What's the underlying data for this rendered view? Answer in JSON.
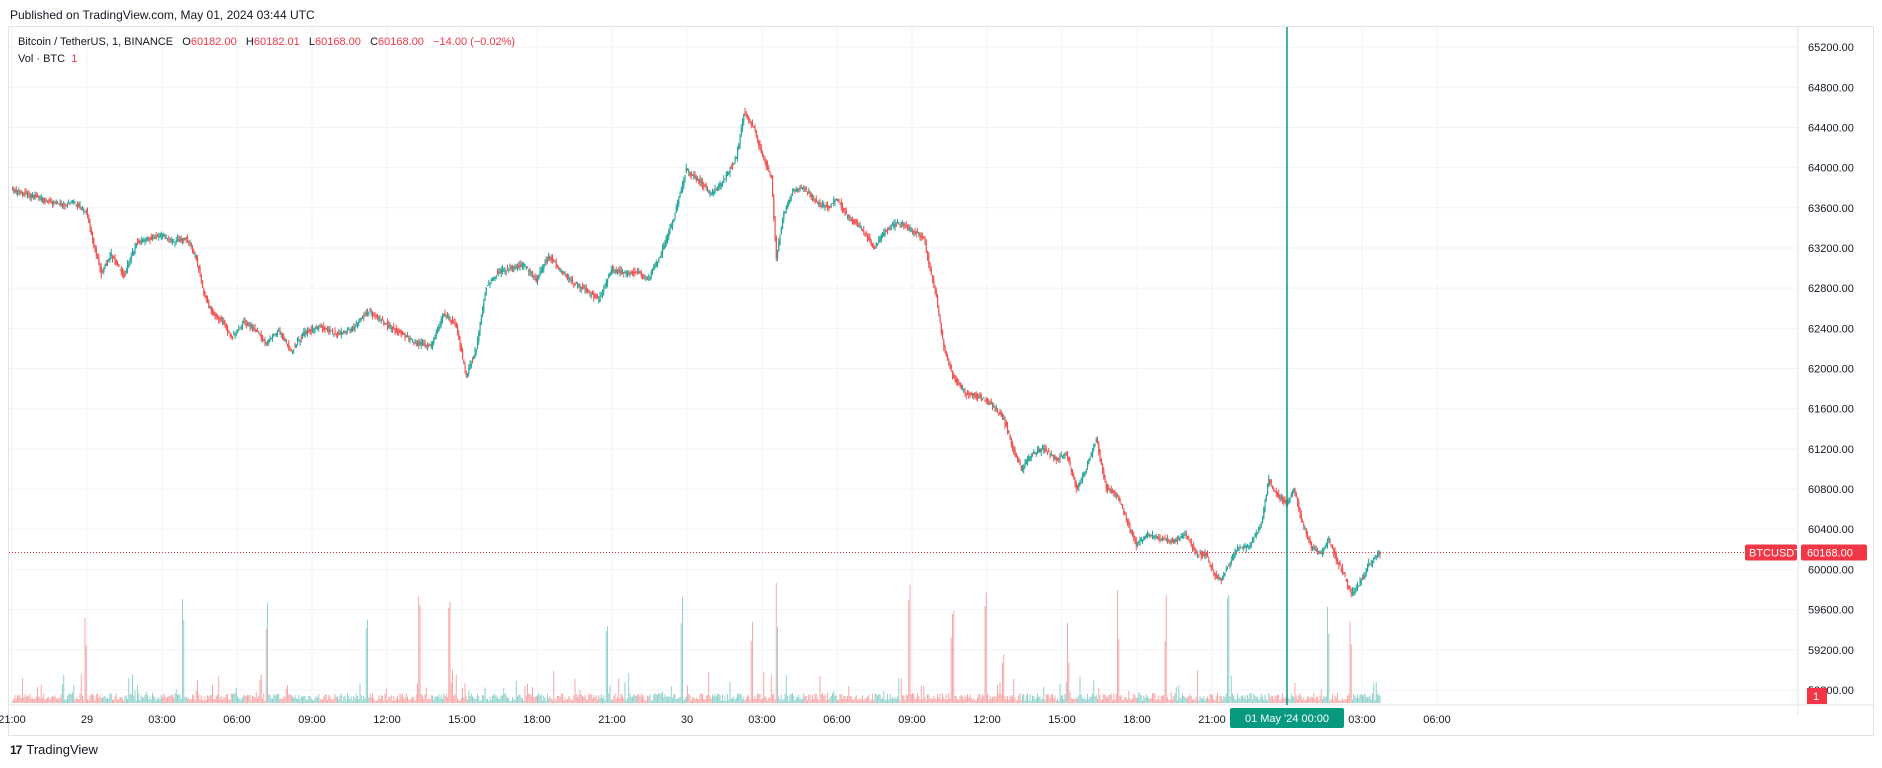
{
  "header": {
    "published": "Published on TradingView.com, May 01, 2024 03:44 UTC"
  },
  "legend": {
    "symbol": "Bitcoin / TetherUS, 1, BINANCE",
    "o_label": "O",
    "o_value": "60182.00",
    "h_label": "H",
    "h_value": "60182.01",
    "l_label": "L",
    "l_value": "60168.00",
    "c_label": "C",
    "c_value": "60168.00",
    "change": "−14.00 (−0.02%)",
    "vol_label": "Vol · BTC",
    "vol_value": "1"
  },
  "footer": {
    "brand": "TradingView",
    "logo": "17"
  },
  "colors": {
    "up": "#26a69a",
    "down": "#ef5350",
    "accent_green": "#089981",
    "price_tag": "#f23645",
    "crosshair": "#089981"
  },
  "chart_data": {
    "type": "candlestick",
    "symbol": "BTCUSDT",
    "interval": "1",
    "exchange": "BINANCE",
    "last_price": "60168.00",
    "last_price_label": "BTCUSDT",
    "volume_label": "1",
    "crosshair_time_label": "01 May '24   00:00",
    "ylim": [
      58700,
      65400
    ],
    "y_ticks": [
      "65200.00",
      "64800.00",
      "64400.00",
      "64000.00",
      "63600.00",
      "63200.00",
      "62800.00",
      "62400.00",
      "62000.00",
      "61600.00",
      "61200.00",
      "60800.00",
      "60400.00",
      "60000.00",
      "59600.00",
      "59200.00",
      "58800.00"
    ],
    "x_ticks": [
      "21:00",
      "29",
      "03:00",
      "06:00",
      "09:00",
      "12:00",
      "15:00",
      "18:00",
      "21:00",
      "30",
      "03:00",
      "06:00",
      "09:00",
      "12:00",
      "15:00",
      "18:00",
      "21:00",
      "03:00",
      "06:00"
    ],
    "x_tick_hours": [
      0,
      3,
      6,
      9,
      12,
      15,
      18,
      21,
      24,
      27,
      30,
      33,
      36,
      39,
      42,
      45,
      48,
      54,
      57
    ],
    "crosshair_hour": 51,
    "last_hour": 54.7,
    "price_path": [
      [
        0,
        63780
      ],
      [
        1,
        63700
      ],
      [
        2,
        63630
      ],
      [
        2.5,
        63660
      ],
      [
        3,
        63550
      ],
      [
        3.3,
        63230
      ],
      [
        3.6,
        62950
      ],
      [
        4,
        63130
      ],
      [
        4.5,
        62920
      ],
      [
        5,
        63250
      ],
      [
        6,
        63330
      ],
      [
        6.5,
        63260
      ],
      [
        7,
        63300
      ],
      [
        7.4,
        63100
      ],
      [
        7.7,
        62750
      ],
      [
        8,
        62560
      ],
      [
        8.5,
        62460
      ],
      [
        8.8,
        62300
      ],
      [
        9.3,
        62470
      ],
      [
        9.8,
        62370
      ],
      [
        10.2,
        62250
      ],
      [
        10.7,
        62380
      ],
      [
        11.2,
        62170
      ],
      [
        11.7,
        62350
      ],
      [
        12.3,
        62420
      ],
      [
        13,
        62340
      ],
      [
        13.6,
        62380
      ],
      [
        14.3,
        62580
      ],
      [
        15,
        62440
      ],
      [
        15.6,
        62350
      ],
      [
        16.2,
        62250
      ],
      [
        16.8,
        62230
      ],
      [
        17.3,
        62550
      ],
      [
        17.8,
        62420
      ],
      [
        18.2,
        61920
      ],
      [
        18.6,
        62200
      ],
      [
        19,
        62820
      ],
      [
        19.5,
        62970
      ],
      [
        20,
        63000
      ],
      [
        20.5,
        63030
      ],
      [
        21,
        62880
      ],
      [
        21.5,
        63130
      ],
      [
        22,
        62970
      ],
      [
        22.5,
        62850
      ],
      [
        23,
        62780
      ],
      [
        23.5,
        62680
      ],
      [
        24,
        62980
      ],
      [
        24.5,
        62950
      ],
      [
        25,
        62960
      ],
      [
        25.5,
        62900
      ],
      [
        26,
        63150
      ],
      [
        26.5,
        63500
      ],
      [
        27,
        63980
      ],
      [
        27.5,
        63870
      ],
      [
        28,
        63740
      ],
      [
        28.5,
        63870
      ],
      [
        29,
        64100
      ],
      [
        29.3,
        64550
      ],
      [
        29.7,
        64400
      ],
      [
        30,
        64150
      ],
      [
        30.4,
        63900
      ],
      [
        30.6,
        63100
      ],
      [
        30.9,
        63550
      ],
      [
        31.3,
        63780
      ],
      [
        31.7,
        63800
      ],
      [
        32.2,
        63650
      ],
      [
        32.7,
        63600
      ],
      [
        33,
        63700
      ],
      [
        33.5,
        63500
      ],
      [
        34,
        63400
      ],
      [
        34.5,
        63200
      ],
      [
        35,
        63380
      ],
      [
        35.5,
        63450
      ],
      [
        36,
        63380
      ],
      [
        36.5,
        63290
      ],
      [
        37,
        62700
      ],
      [
        37.3,
        62200
      ],
      [
        37.7,
        61900
      ],
      [
        38.2,
        61750
      ],
      [
        38.7,
        61720
      ],
      [
        39.2,
        61650
      ],
      [
        39.7,
        61500
      ],
      [
        40,
        61250
      ],
      [
        40.4,
        60990
      ],
      [
        40.8,
        61150
      ],
      [
        41.3,
        61200
      ],
      [
        41.8,
        61100
      ],
      [
        42.2,
        61150
      ],
      [
        42.6,
        60800
      ],
      [
        43,
        61000
      ],
      [
        43.4,
        61300
      ],
      [
        43.8,
        60800
      ],
      [
        44.2,
        60750
      ],
      [
        44.6,
        60500
      ],
      [
        45,
        60250
      ],
      [
        45.5,
        60350
      ],
      [
        46,
        60300
      ],
      [
        46.5,
        60280
      ],
      [
        47,
        60350
      ],
      [
        47.4,
        60150
      ],
      [
        47.8,
        60150
      ],
      [
        48.1,
        59950
      ],
      [
        48.4,
        59900
      ],
      [
        48.7,
        60050
      ],
      [
        49,
        60200
      ],
      [
        49.5,
        60230
      ],
      [
        50,
        60450
      ],
      [
        50.3,
        60900
      ],
      [
        50.6,
        60750
      ],
      [
        51,
        60650
      ],
      [
        51.3,
        60800
      ],
      [
        51.6,
        60500
      ],
      [
        52,
        60220
      ],
      [
        52.4,
        60150
      ],
      [
        52.7,
        60300
      ],
      [
        53,
        60100
      ],
      [
        53.3,
        59950
      ],
      [
        53.6,
        59750
      ],
      [
        54,
        59890
      ],
      [
        54.3,
        60050
      ],
      [
        54.7,
        60168
      ]
    ],
    "volume_spike_hours": [
      2.9,
      6.8,
      10.2,
      14.2,
      16.3,
      17.5,
      23.8,
      26.8,
      29.6,
      30.6,
      35.9,
      37.6,
      38.9,
      39.6,
      42.2,
      44.2,
      46.1,
      48.6,
      52.6,
      53.5
    ]
  }
}
